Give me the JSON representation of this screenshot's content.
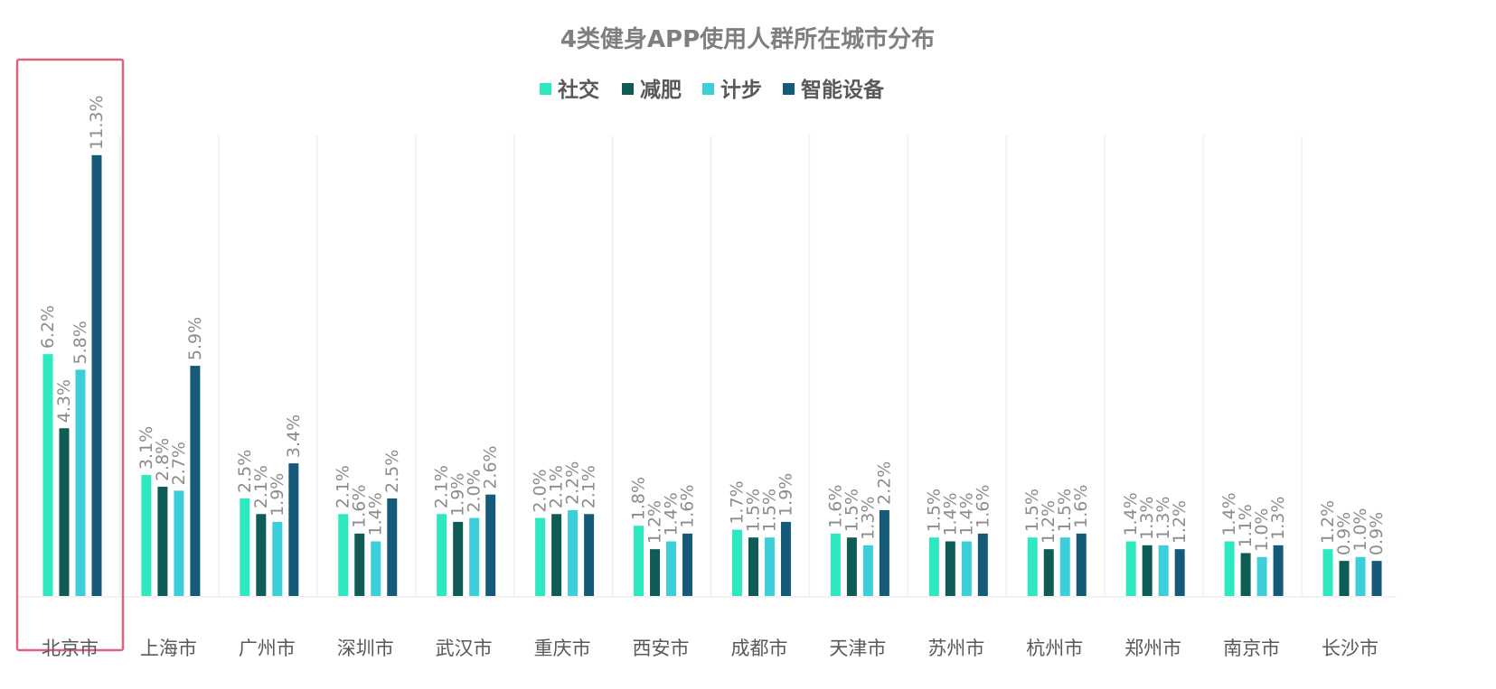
{
  "chart_data": {
    "type": "bar",
    "title": "4类健身APP使用人群所在城市分布",
    "xlabel": "",
    "ylabel": "",
    "ylim": [
      0,
      12
    ],
    "grid": false,
    "legend_position": "top-center",
    "highlighted_category": "北京市",
    "categories": [
      "北京市",
      "上海市",
      "广州市",
      "深圳市",
      "武汉市",
      "重庆市",
      "西安市",
      "成都市",
      "天津市",
      "苏州市",
      "杭州市",
      "郑州市",
      "南京市",
      "长沙市"
    ],
    "series": [
      {
        "name": "社交",
        "color": "#2ee8c0",
        "values": [
          6.2,
          3.1,
          2.5,
          2.1,
          2.1,
          2.0,
          1.8,
          1.7,
          1.6,
          1.5,
          1.5,
          1.4,
          1.4,
          1.2
        ],
        "labels": [
          "6.2%",
          "3.1%",
          "2.5%",
          "2.1%",
          "2.1%",
          "2.0%",
          "1.8%",
          "1.7%",
          "1.6%",
          "1.5%",
          "1.5%",
          "1.4%",
          "1.4%",
          "1.2%"
        ]
      },
      {
        "name": "减肥",
        "color": "#0e5c55",
        "values": [
          4.3,
          2.8,
          2.1,
          1.6,
          1.9,
          2.1,
          1.2,
          1.5,
          1.5,
          1.4,
          1.2,
          1.3,
          1.1,
          0.9
        ],
        "labels": [
          "4.3%",
          "2.8%",
          "2.1%",
          "1.6%",
          "1.9%",
          "2.1%",
          "1.2%",
          "1.5%",
          "1.5%",
          "1.4%",
          "1.2%",
          "1.3%",
          "1.1%",
          "0.9%"
        ]
      },
      {
        "name": "计步",
        "color": "#3ccfd9",
        "values": [
          5.8,
          2.7,
          1.9,
          1.4,
          2.0,
          2.2,
          1.4,
          1.5,
          1.3,
          1.4,
          1.5,
          1.3,
          1.0,
          1.0
        ],
        "labels": [
          "5.8%",
          "2.7%",
          "1.9%",
          "1.4%",
          "2.0%",
          "2.2%",
          "1.4%",
          "1.5%",
          "1.3%",
          "1.4%",
          "1.5%",
          "1.3%",
          "1.0%",
          "1.0%"
        ]
      },
      {
        "name": "智能设备",
        "color": "#155a78",
        "values": [
          11.3,
          5.9,
          3.4,
          2.5,
          2.6,
          2.1,
          1.6,
          1.9,
          2.2,
          1.6,
          1.6,
          1.2,
          1.3,
          0.9
        ],
        "labels": [
          "11.3%",
          "5.9%",
          "3.4%",
          "2.5%",
          "2.6%",
          "2.1%",
          "1.6%",
          "1.9%",
          "2.2%",
          "1.6%",
          "1.6%",
          "1.2%",
          "1.3%",
          "0.9%"
        ]
      }
    ]
  },
  "colors": {
    "highlight_border": "#d9667f",
    "divider": "#f0f0f0",
    "baseline": "#e6e6e6"
  }
}
